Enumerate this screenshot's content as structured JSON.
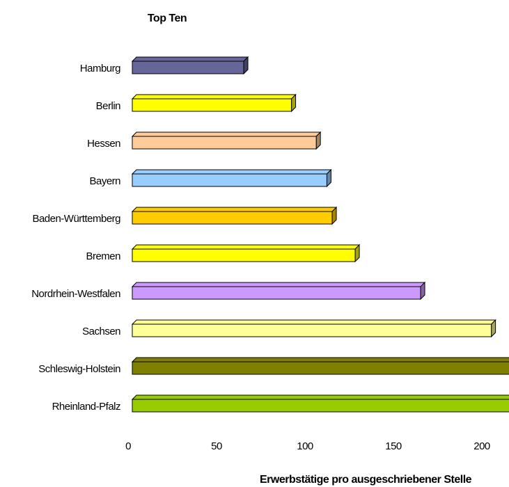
{
  "chart_data": {
    "type": "bar",
    "orientation": "horizontal",
    "title": "Top Ten",
    "x_label": "Erwerbstätige pro ausgeschriebener Stelle",
    "categories": [
      "Hamburg",
      "Berlin",
      "Hessen",
      "Bayern",
      "Baden-Württemberg",
      "Bremen",
      "Nordrhein-Westfalen",
      "Sachsen",
      "Schleswig-Holstein",
      "Rheinland-Pfalz"
    ],
    "values": [
      63,
      90,
      104,
      110,
      113,
      126,
      163,
      203,
      215,
      225
    ],
    "colors": [
      "#666699",
      "#ffff00",
      "#ffcc99",
      "#99ccff",
      "#ffcc00",
      "#ffff00",
      "#cc99ff",
      "#ffff99",
      "#808000",
      "#99cc00"
    ],
    "xlim": [
      0,
      250
    ],
    "xticks": [
      0,
      50,
      100,
      150,
      200
    ],
    "grid": false
  }
}
